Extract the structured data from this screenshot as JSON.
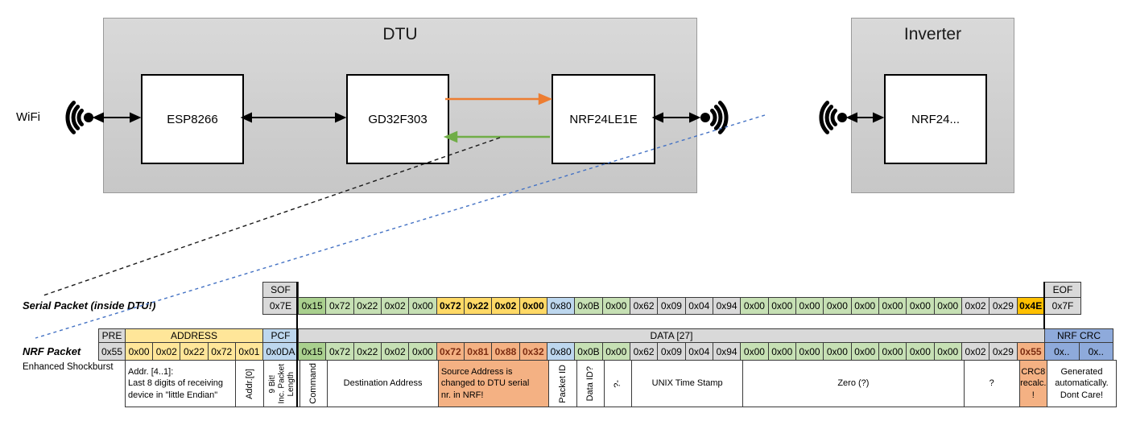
{
  "diagram": {
    "wifi_label": "WiFi",
    "dtu": {
      "title": "DTU",
      "chips": {
        "esp": "ESP8266",
        "gd": "GD32F303",
        "nrf": "NRF24LE1E"
      }
    },
    "inverter": {
      "title": "Inverter",
      "chip": "NRF24..."
    }
  },
  "colors": {
    "arrow_orange": "#ED7D31",
    "arrow_green": "#70AD47",
    "dashed_blue": "#4472C4",
    "green_dark": "#A9D08E",
    "green_light": "#C6E0B4",
    "gold_bold": "#FFD966",
    "address_yellow": "#FFE699",
    "pcf_blue": "#BDD7EE",
    "gray": "#D9D9D9",
    "salmon": "#F4B183",
    "crc_orange": "#FFC000",
    "nrf_crc_blue": "#8EAADB"
  },
  "serial_packet": {
    "label": "Serial Packet (inside DTU!)",
    "sof_header": "SOF",
    "sof_value": "0x7E",
    "eof_header": "EOF",
    "eof_value": "0x7F",
    "bytes": [
      {
        "v": "0x15",
        "s": "gd"
      },
      {
        "v": "0x72",
        "s": "g"
      },
      {
        "v": "0x22",
        "s": "g"
      },
      {
        "v": "0x02",
        "s": "g"
      },
      {
        "v": "0x00",
        "s": "g"
      },
      {
        "v": "0x72",
        "s": "yb"
      },
      {
        "v": "0x22",
        "s": "yb"
      },
      {
        "v": "0x02",
        "s": "yb"
      },
      {
        "v": "0x00",
        "s": "yb"
      },
      {
        "v": "0x80",
        "s": "b"
      },
      {
        "v": "0x0B",
        "s": "g"
      },
      {
        "v": "0x00",
        "s": "g"
      },
      {
        "v": "0x62",
        "s": "gy"
      },
      {
        "v": "0x09",
        "s": "gy"
      },
      {
        "v": "0x04",
        "s": "gy"
      },
      {
        "v": "0x94",
        "s": "gy"
      },
      {
        "v": "0x00",
        "s": "g"
      },
      {
        "v": "0x00",
        "s": "g"
      },
      {
        "v": "0x00",
        "s": "g"
      },
      {
        "v": "0x00",
        "s": "g"
      },
      {
        "v": "0x00",
        "s": "g"
      },
      {
        "v": "0x00",
        "s": "g"
      },
      {
        "v": "0x00",
        "s": "g"
      },
      {
        "v": "0x00",
        "s": "g"
      },
      {
        "v": "0x02",
        "s": "gy"
      },
      {
        "v": "0x29",
        "s": "gy"
      },
      {
        "v": "0x4E",
        "s": "ob"
      }
    ]
  },
  "nrf_packet": {
    "label": "NRF Packet",
    "sublabel": "Enhanced Shockburst",
    "pre_header": "PRE",
    "pre_value": "0x55",
    "address_header": "ADDRESS",
    "address_values": [
      "0x00",
      "0x02",
      "0x22",
      "0x72",
      "0x01"
    ],
    "pcf_header": "PCF",
    "pcf_value": "0x0DA",
    "data_header": "DATA [27]",
    "crc_header": "NRF CRC",
    "crc_values": [
      "0x..",
      "0x.."
    ],
    "bytes": [
      {
        "v": "0x15",
        "s": "gd"
      },
      {
        "v": "0x72",
        "s": "g"
      },
      {
        "v": "0x22",
        "s": "g"
      },
      {
        "v": "0x02",
        "s": "g"
      },
      {
        "v": "0x00",
        "s": "g"
      },
      {
        "v": "0x72",
        "s": "sb"
      },
      {
        "v": "0x81",
        "s": "sb"
      },
      {
        "v": "0x88",
        "s": "sb"
      },
      {
        "v": "0x32",
        "s": "sb"
      },
      {
        "v": "0x80",
        "s": "b"
      },
      {
        "v": "0x0B",
        "s": "g"
      },
      {
        "v": "0x00",
        "s": "g"
      },
      {
        "v": "0x62",
        "s": "gy"
      },
      {
        "v": "0x09",
        "s": "gy"
      },
      {
        "v": "0x04",
        "s": "gy"
      },
      {
        "v": "0x94",
        "s": "gy"
      },
      {
        "v": "0x00",
        "s": "g"
      },
      {
        "v": "0x00",
        "s": "g"
      },
      {
        "v": "0x00",
        "s": "g"
      },
      {
        "v": "0x00",
        "s": "g"
      },
      {
        "v": "0x00",
        "s": "g"
      },
      {
        "v": "0x00",
        "s": "g"
      },
      {
        "v": "0x00",
        "s": "g"
      },
      {
        "v": "0x00",
        "s": "g"
      },
      {
        "v": "0x02",
        "s": "gy"
      },
      {
        "v": "0x29",
        "s": "gy"
      },
      {
        "v": "0x55",
        "s": "sb"
      }
    ],
    "annotations": [
      {
        "label": "Addr. [4..1]:\nLast 8 digits of receiving\ndevice in \"little Endian\"",
        "vertical": false,
        "fill": "white",
        "align": "left"
      },
      {
        "label": "Addr.[0]",
        "vertical": true,
        "fill": "white",
        "align": "center"
      },
      {
        "label": "9 Bit!\nInc. Packet\nLength",
        "vertical": true,
        "fill": "white",
        "align": "center"
      },
      {
        "label": "Command",
        "vertical": true,
        "fill": "white",
        "align": "center"
      },
      {
        "label": "Destination Address",
        "vertical": false,
        "fill": "white",
        "align": "center"
      },
      {
        "label": "Source Address is\nchanged to DTU serial\nnr. in NRF!",
        "vertical": false,
        "fill": "salmon",
        "align": "left"
      },
      {
        "label": "Packet ID",
        "vertical": true,
        "fill": "white",
        "align": "center"
      },
      {
        "label": "Data ID?",
        "vertical": true,
        "fill": "white",
        "align": "center"
      },
      {
        "label": "?-",
        "vertical": true,
        "fill": "white",
        "align": "center"
      },
      {
        "label": "UNIX Time Stamp",
        "vertical": false,
        "fill": "white",
        "align": "center"
      },
      {
        "label": "Zero (?)",
        "vertical": false,
        "fill": "white",
        "align": "center"
      },
      {
        "label": "?",
        "vertical": false,
        "fill": "white",
        "align": "center"
      },
      {
        "label": "CRC8\nrecalc.\n!",
        "vertical": false,
        "fill": "salmon",
        "align": "center"
      },
      {
        "label": "Generated\nautomatically.\nDont Care!",
        "vertical": false,
        "fill": "white",
        "align": "center"
      }
    ]
  }
}
